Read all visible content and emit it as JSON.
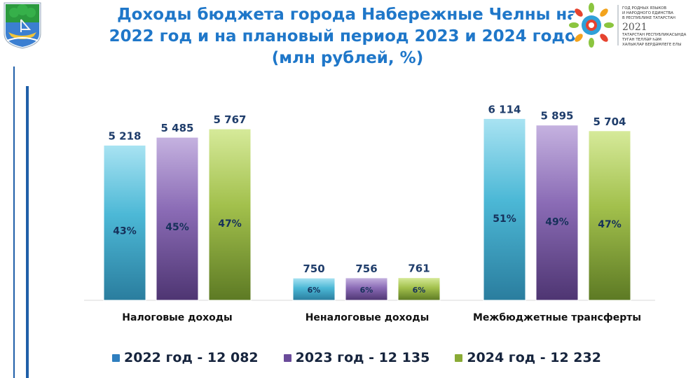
{
  "title_lines": [
    "Доходы бюджета города Набережные Челны на",
    "2022 год и на плановый период 2023 и 2024 годов",
    "(млн рублей, %)"
  ],
  "emblem_text": [
    "ГОД РОДНЫХ ЯЗЫКОВ",
    "И НАРОДНОГО ЕДИНСТВА",
    "В РЕСПУБЛИКЕ ТАТАРСТАН",
    "2021",
    "ТАТАРСТАН РЕСПУБЛИКАСЫНДА",
    "ТУГАН ТЕЛЛӘР ҺӘМ",
    "ХАЛЫКЛАР БЕРДӘМЛЕГЕ ЕЛЫ"
  ],
  "colors": {
    "title": "#1f77c9",
    "series_2022": "#4cb8d6",
    "series_2023": "#8a6bb5",
    "series_2024": "#a2c04c"
  },
  "chart_data": {
    "type": "bar",
    "title": "Доходы бюджета города Набережные Челны на 2022 год и на плановый период 2023 и 2024 годов (млн рублей, %)",
    "categories": [
      "Налоговые доходы",
      "Неналоговые доходы",
      "Межбюджетные трансферты"
    ],
    "ylim": [
      0,
      6500
    ],
    "grid": false,
    "legend_position": "bottom",
    "series": [
      {
        "name": "2022 год - 12 082",
        "values": [
          5218,
          750,
          6114
        ],
        "value_labels": [
          "5 218",
          "750",
          "6 114"
        ],
        "percent_labels": [
          "43%",
          "6%",
          "51%"
        ]
      },
      {
        "name": "2023 год - 12 135",
        "values": [
          5485,
          756,
          5895
        ],
        "value_labels": [
          "5 485",
          "756",
          "5 895"
        ],
        "percent_labels": [
          "45%",
          "6%",
          "49%"
        ]
      },
      {
        "name": "2024 год - 12 232",
        "values": [
          5767,
          761,
          5704
        ],
        "value_labels": [
          "5 767",
          "761",
          "5 704"
        ],
        "percent_labels": [
          "47%",
          "6%",
          "47%"
        ]
      }
    ]
  }
}
